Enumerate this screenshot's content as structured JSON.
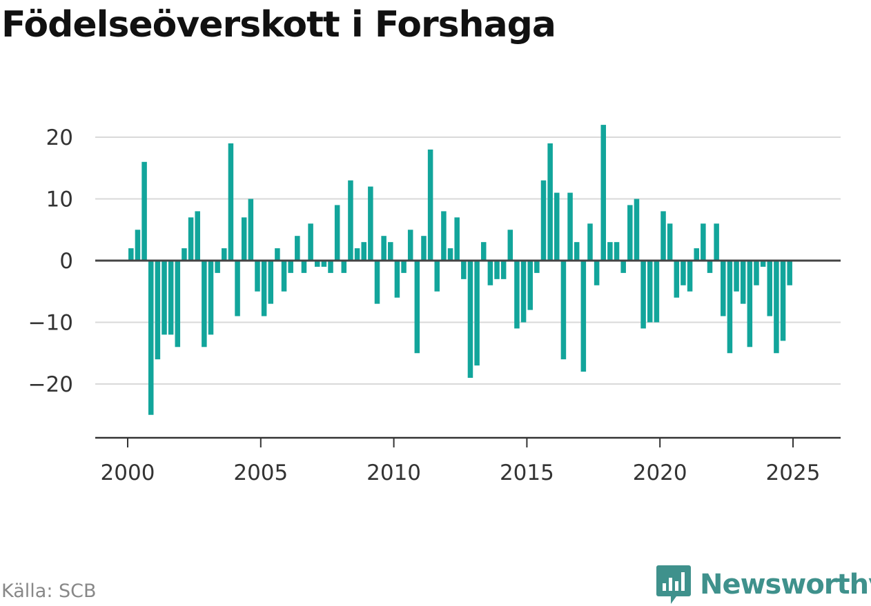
{
  "title": "Födelseöverskott i Forshaga",
  "source": "Källa: SCB",
  "brand": "Newsworthy",
  "colors": {
    "bar": "#12a59b",
    "grid": "#d9d9d9",
    "zero_line": "#444444",
    "axis": "#333333",
    "tick_text": "#333333",
    "brand": "#3f918c"
  },
  "chart_data": {
    "type": "bar",
    "xlabel": "",
    "ylabel": "",
    "x_unit": "quarter",
    "xlim": [
      1999.75,
      2026.75
    ],
    "ylim": [
      -28,
      22
    ],
    "y_ticks": [
      20,
      10,
      0,
      -10,
      -20
    ],
    "y_tick_labels": [
      "20",
      "10",
      "0",
      "−10",
      "−20"
    ],
    "x_ticks": [
      2000,
      2005,
      2010,
      2015,
      2020,
      2025
    ],
    "x_tick_labels": [
      "2000",
      "2005",
      "2010",
      "2015",
      "2020",
      "2025"
    ],
    "grid": true,
    "legend": "none",
    "series": [
      {
        "values": [
          2,
          5,
          16,
          -25,
          -16,
          -12,
          -12,
          -14,
          2,
          7,
          8,
          -14,
          -12,
          -2,
          2,
          19,
          -9,
          7,
          10,
          -5,
          -9,
          -7,
          2,
          -5,
          -2,
          4,
          -2,
          6,
          -1,
          -1,
          -2,
          9,
          -2,
          13,
          2,
          3,
          12,
          -7,
          4,
          3,
          -6,
          -2,
          5,
          -15,
          4,
          18,
          -5,
          8,
          2,
          7,
          -3,
          -19,
          -17,
          3,
          -4,
          -3,
          -3,
          5,
          -11,
          -10,
          -8,
          -2,
          13,
          19,
          11,
          -16,
          11,
          3,
          -18,
          6,
          -4,
          22,
          3,
          3,
          -2,
          9,
          10,
          -11,
          -10,
          -10,
          8,
          6,
          -6,
          -4,
          -5,
          2,
          6,
          -2,
          6,
          -9,
          -15,
          -5,
          -7,
          -14,
          -4,
          -1,
          -9,
          -15,
          -13,
          -4
        ]
      }
    ]
  }
}
